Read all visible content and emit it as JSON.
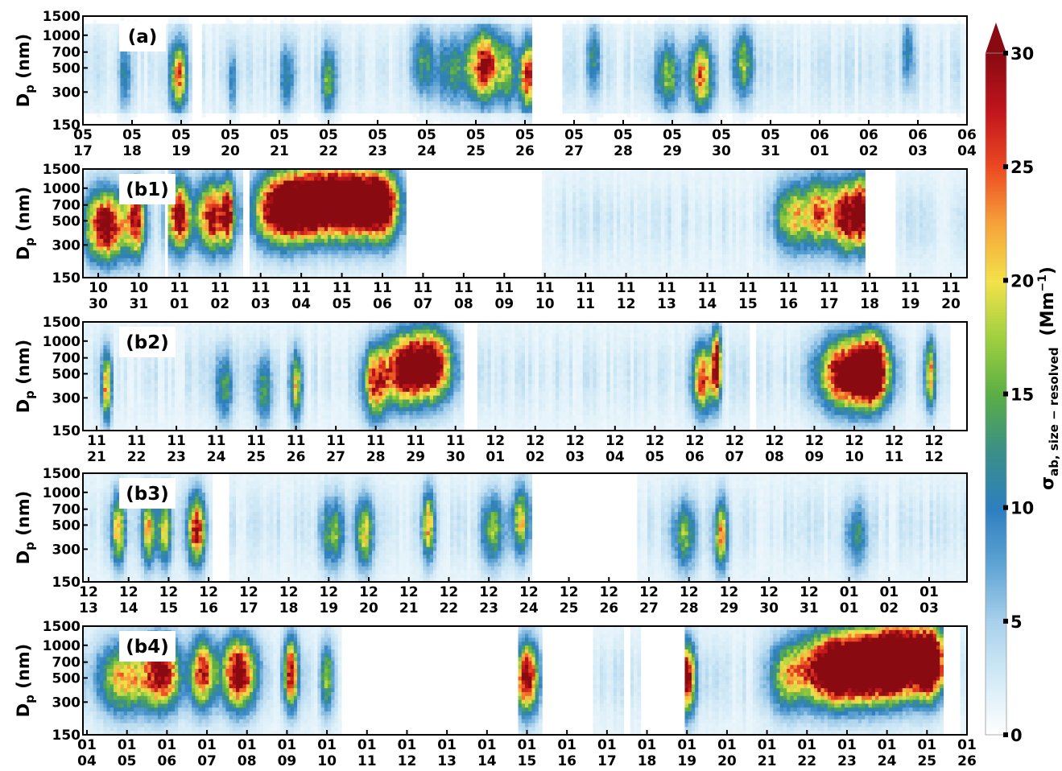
{
  "chart_data": [
    {
      "type": "heatmap",
      "panel_label": "(a)",
      "ylabel": "D",
      "ylabel_sub": "p",
      "ylabel_unit": " (nm)",
      "y_scale": "log",
      "ylim": [
        150,
        1500
      ],
      "yticks": [
        "1500",
        "1000",
        "700",
        "500",
        "300",
        "150"
      ],
      "ytick_values": [
        1500,
        1000,
        700,
        500,
        300,
        150
      ],
      "xticks": [
        [
          "05",
          "17"
        ],
        [
          "05",
          "18"
        ],
        [
          "05",
          "19"
        ],
        [
          "05",
          "20"
        ],
        [
          "05",
          "21"
        ],
        [
          "05",
          "22"
        ],
        [
          "05",
          "23"
        ],
        [
          "05",
          "24"
        ],
        [
          "05",
          "25"
        ],
        [
          "05",
          "26"
        ],
        [
          "05",
          "27"
        ],
        [
          "05",
          "28"
        ],
        [
          "05",
          "29"
        ],
        [
          "05",
          "30"
        ],
        [
          "05",
          "31"
        ],
        [
          "06",
          "01"
        ],
        [
          "06",
          "02"
        ],
        [
          "06",
          "03"
        ],
        [
          "06",
          "04"
        ]
      ],
      "gaps": [
        [
          2.2,
          2.45
        ],
        [
          9.15,
          9.75
        ]
      ],
      "hotspots": [
        [
          0.85,
          420,
          0.08,
          10
        ],
        [
          1.95,
          420,
          0.12,
          22
        ],
        [
          3.05,
          380,
          0.06,
          9
        ],
        [
          4.15,
          400,
          0.1,
          10
        ],
        [
          5.0,
          380,
          0.1,
          14
        ],
        [
          6.9,
          600,
          0.15,
          10
        ],
        [
          7.5,
          480,
          0.3,
          10
        ],
        [
          8.2,
          520,
          0.22,
          28
        ],
        [
          8.65,
          450,
          0.12,
          12
        ],
        [
          9.05,
          420,
          0.12,
          26
        ],
        [
          10.4,
          600,
          0.1,
          10
        ],
        [
          11.9,
          420,
          0.18,
          14
        ],
        [
          12.6,
          420,
          0.16,
          22
        ],
        [
          13.45,
          550,
          0.14,
          14
        ],
        [
          16.8,
          700,
          0.08,
          10
        ]
      ]
    },
    {
      "type": "heatmap",
      "panel_label": "(b1)",
      "ylabel": "D",
      "ylabel_sub": "p",
      "ylabel_unit": " (nm)",
      "y_scale": "log",
      "ylim": [
        150,
        1500
      ],
      "yticks": [
        "1500",
        "1000",
        "700",
        "500",
        "300",
        "150"
      ],
      "ytick_values": [
        1500,
        1000,
        700,
        500,
        300,
        150
      ],
      "xticks": [
        [
          "10",
          "30"
        ],
        [
          "10",
          "31"
        ],
        [
          "11",
          "01"
        ],
        [
          "11",
          "02"
        ],
        [
          "11",
          "03"
        ],
        [
          "11",
          "04"
        ],
        [
          "11",
          "05"
        ],
        [
          "11",
          "06"
        ],
        [
          "11",
          "07"
        ],
        [
          "11",
          "08"
        ],
        [
          "11",
          "09"
        ],
        [
          "11",
          "10"
        ],
        [
          "11",
          "11"
        ],
        [
          "11",
          "12"
        ],
        [
          "11",
          "13"
        ],
        [
          "11",
          "14"
        ],
        [
          "11",
          "15"
        ],
        [
          "11",
          "16"
        ],
        [
          "11",
          "17"
        ],
        [
          "11",
          "18"
        ],
        [
          "11",
          "19"
        ],
        [
          "11",
          "20"
        ]
      ],
      "gaps": [
        [
          1.6,
          1.75
        ],
        [
          3.6,
          3.7
        ],
        [
          7.55,
          10.9
        ],
        [
          18.9,
          19.6
        ]
      ],
      "hotspots": [
        [
          0.2,
          450,
          0.35,
          32
        ],
        [
          0.95,
          500,
          0.15,
          26
        ],
        [
          2.0,
          550,
          0.2,
          30
        ],
        [
          2.8,
          550,
          0.25,
          28
        ],
        [
          3.2,
          600,
          0.1,
          24
        ],
        [
          4.5,
          650,
          0.45,
          34
        ],
        [
          5.4,
          750,
          0.5,
          36
        ],
        [
          6.3,
          750,
          0.45,
          36
        ],
        [
          7.0,
          700,
          0.3,
          30
        ],
        [
          17.1,
          550,
          0.3,
          18
        ],
        [
          17.8,
          600,
          0.25,
          22
        ],
        [
          18.4,
          550,
          0.2,
          30
        ],
        [
          18.8,
          600,
          0.15,
          32
        ]
      ]
    },
    {
      "type": "heatmap",
      "panel_label": "(b2)",
      "ylabel": "D",
      "ylabel_sub": "p",
      "ylabel_unit": " (nm)",
      "y_scale": "log",
      "ylim": [
        150,
        1500
      ],
      "yticks": [
        "1500",
        "1000",
        "700",
        "500",
        "300",
        "150"
      ],
      "ytick_values": [
        1500,
        1000,
        700,
        500,
        300,
        150
      ],
      "xticks": [
        [
          "11",
          "21"
        ],
        [
          "11",
          "22"
        ],
        [
          "11",
          "23"
        ],
        [
          "11",
          "24"
        ],
        [
          "11",
          "25"
        ],
        [
          "11",
          "26"
        ],
        [
          "11",
          "27"
        ],
        [
          "11",
          "28"
        ],
        [
          "11",
          "29"
        ],
        [
          "11",
          "30"
        ],
        [
          "12",
          "01"
        ],
        [
          "12",
          "02"
        ],
        [
          "12",
          "03"
        ],
        [
          "12",
          "04"
        ],
        [
          "12",
          "05"
        ],
        [
          "12",
          "06"
        ],
        [
          "12",
          "07"
        ],
        [
          "12",
          "08"
        ],
        [
          "12",
          "09"
        ],
        [
          "12",
          "10"
        ],
        [
          "12",
          "11"
        ],
        [
          "12",
          "12"
        ]
      ],
      "gaps": [
        [
          9.2,
          9.55
        ],
        [
          16.4,
          16.55
        ],
        [
          21.4,
          22.6
        ]
      ],
      "hotspots": [
        [
          0.25,
          380,
          0.08,
          22
        ],
        [
          3.2,
          380,
          0.15,
          12
        ],
        [
          4.2,
          350,
          0.15,
          12
        ],
        [
          5.0,
          380,
          0.1,
          18
        ],
        [
          7.0,
          420,
          0.22,
          26
        ],
        [
          7.7,
          550,
          0.3,
          32
        ],
        [
          8.4,
          600,
          0.35,
          34
        ],
        [
          15.2,
          450,
          0.18,
          24
        ],
        [
          15.55,
          600,
          0.08,
          30
        ],
        [
          18.9,
          500,
          0.5,
          36
        ],
        [
          19.5,
          550,
          0.25,
          30
        ],
        [
          20.9,
          500,
          0.1,
          20
        ]
      ]
    },
    {
      "type": "heatmap",
      "panel_label": "(b3)",
      "ylabel": "D",
      "ylabel_sub": "p",
      "ylabel_unit": " (nm)",
      "y_scale": "log",
      "ylim": [
        150,
        1500
      ],
      "yticks": [
        "1500",
        "1000",
        "700",
        "500",
        "300",
        "150"
      ],
      "ytick_values": [
        1500,
        1000,
        700,
        500,
        300,
        150
      ],
      "xticks": [
        [
          "12",
          "13"
        ],
        [
          "12",
          "14"
        ],
        [
          "12",
          "15"
        ],
        [
          "12",
          "16"
        ],
        [
          "12",
          "17"
        ],
        [
          "12",
          "18"
        ],
        [
          "12",
          "19"
        ],
        [
          "12",
          "20"
        ],
        [
          "12",
          "21"
        ],
        [
          "12",
          "22"
        ],
        [
          "12",
          "23"
        ],
        [
          "12",
          "24"
        ],
        [
          "12",
          "25"
        ],
        [
          "12",
          "26"
        ],
        [
          "12",
          "27"
        ],
        [
          "12",
          "28"
        ],
        [
          "12",
          "29"
        ],
        [
          "12",
          "30"
        ],
        [
          "12",
          "31"
        ],
        [
          "01",
          "01"
        ],
        [
          "01",
          "02"
        ],
        [
          "01",
          "03"
        ]
      ],
      "gaps": [
        [
          3.1,
          3.5
        ],
        [
          11.05,
          13.7
        ]
      ],
      "hotspots": [
        [
          0.75,
          450,
          0.12,
          20
        ],
        [
          1.5,
          450,
          0.12,
          20
        ],
        [
          1.9,
          450,
          0.12,
          18
        ],
        [
          2.7,
          450,
          0.15,
          28
        ],
        [
          6.1,
          420,
          0.2,
          14
        ],
        [
          6.9,
          420,
          0.15,
          18
        ],
        [
          8.5,
          500,
          0.1,
          22
        ],
        [
          10.1,
          450,
          0.2,
          14
        ],
        [
          10.8,
          550,
          0.15,
          18
        ],
        [
          14.9,
          400,
          0.2,
          14
        ],
        [
          15.8,
          400,
          0.12,
          20
        ],
        [
          19.2,
          400,
          0.2,
          10
        ]
      ]
    },
    {
      "type": "heatmap",
      "panel_label": "(b4)",
      "ylabel": "D",
      "ylabel_sub": "p",
      "ylabel_unit": " (nm)",
      "y_scale": "log",
      "ylim": [
        150,
        1500
      ],
      "yticks": [
        "1500",
        "1000",
        "700",
        "500",
        "300",
        "150"
      ],
      "ytick_values": [
        1500,
        1000,
        700,
        500,
        300,
        150
      ],
      "xticks": [
        [
          "01",
          "04"
        ],
        [
          "01",
          "05"
        ],
        [
          "01",
          "06"
        ],
        [
          "01",
          "07"
        ],
        [
          "01",
          "08"
        ],
        [
          "01",
          "09"
        ],
        [
          "01",
          "10"
        ],
        [
          "01",
          "11"
        ],
        [
          "01",
          "12"
        ],
        [
          "01",
          "13"
        ],
        [
          "01",
          "14"
        ],
        [
          "01",
          "15"
        ],
        [
          "01",
          "16"
        ],
        [
          "01",
          "17"
        ],
        [
          "01",
          "18"
        ],
        [
          "01",
          "19"
        ],
        [
          "01",
          "20"
        ],
        [
          "01",
          "21"
        ],
        [
          "01",
          "22"
        ],
        [
          "01",
          "23"
        ],
        [
          "01",
          "24"
        ],
        [
          "01",
          "25"
        ],
        [
          "01",
          "26"
        ]
      ],
      "gaps": [
        [
          6.4,
          10.75
        ],
        [
          11.35,
          12.65
        ],
        [
          13.4,
          13.6
        ],
        [
          13.85,
          14.95
        ],
        [
          21.4,
          21.8
        ]
      ],
      "hotspots": [
        [
          1.0,
          500,
          0.5,
          20
        ],
        [
          1.9,
          550,
          0.3,
          26
        ],
        [
          2.9,
          550,
          0.2,
          26
        ],
        [
          3.8,
          550,
          0.3,
          32
        ],
        [
          5.1,
          550,
          0.12,
          30
        ],
        [
          6.0,
          500,
          0.1,
          16
        ],
        [
          11.0,
          500,
          0.2,
          30
        ],
        [
          15.0,
          500,
          0.15,
          30
        ],
        [
          17.5,
          500,
          0.3,
          14
        ],
        [
          18.6,
          600,
          0.6,
          34
        ],
        [
          19.6,
          650,
          0.6,
          34
        ],
        [
          20.4,
          750,
          0.5,
          36
        ],
        [
          21.1,
          700,
          0.25,
          32
        ]
      ]
    }
  ],
  "colorbar": {
    "label_sigma": "σ",
    "label_sub": "ab, size − resolved",
    "label_unit": "(Mm",
    "label_exp": "−1",
    "label_close": ")",
    "ticks": [
      "0",
      "5",
      "10",
      "15",
      "20",
      "25",
      "30"
    ],
    "tick_values": [
      0,
      5,
      10,
      15,
      20,
      25,
      30
    ],
    "max": 30,
    "extend": "max",
    "colormap": [
      "#ffffff",
      "#d4ebf7",
      "#a9d1ec",
      "#5fa4d4",
      "#2e7fbf",
      "#3a8f88",
      "#5aae45",
      "#9fd03f",
      "#f3e24a",
      "#f7a33a",
      "#ec4a22",
      "#c0151c",
      "#8a0a12"
    ]
  }
}
